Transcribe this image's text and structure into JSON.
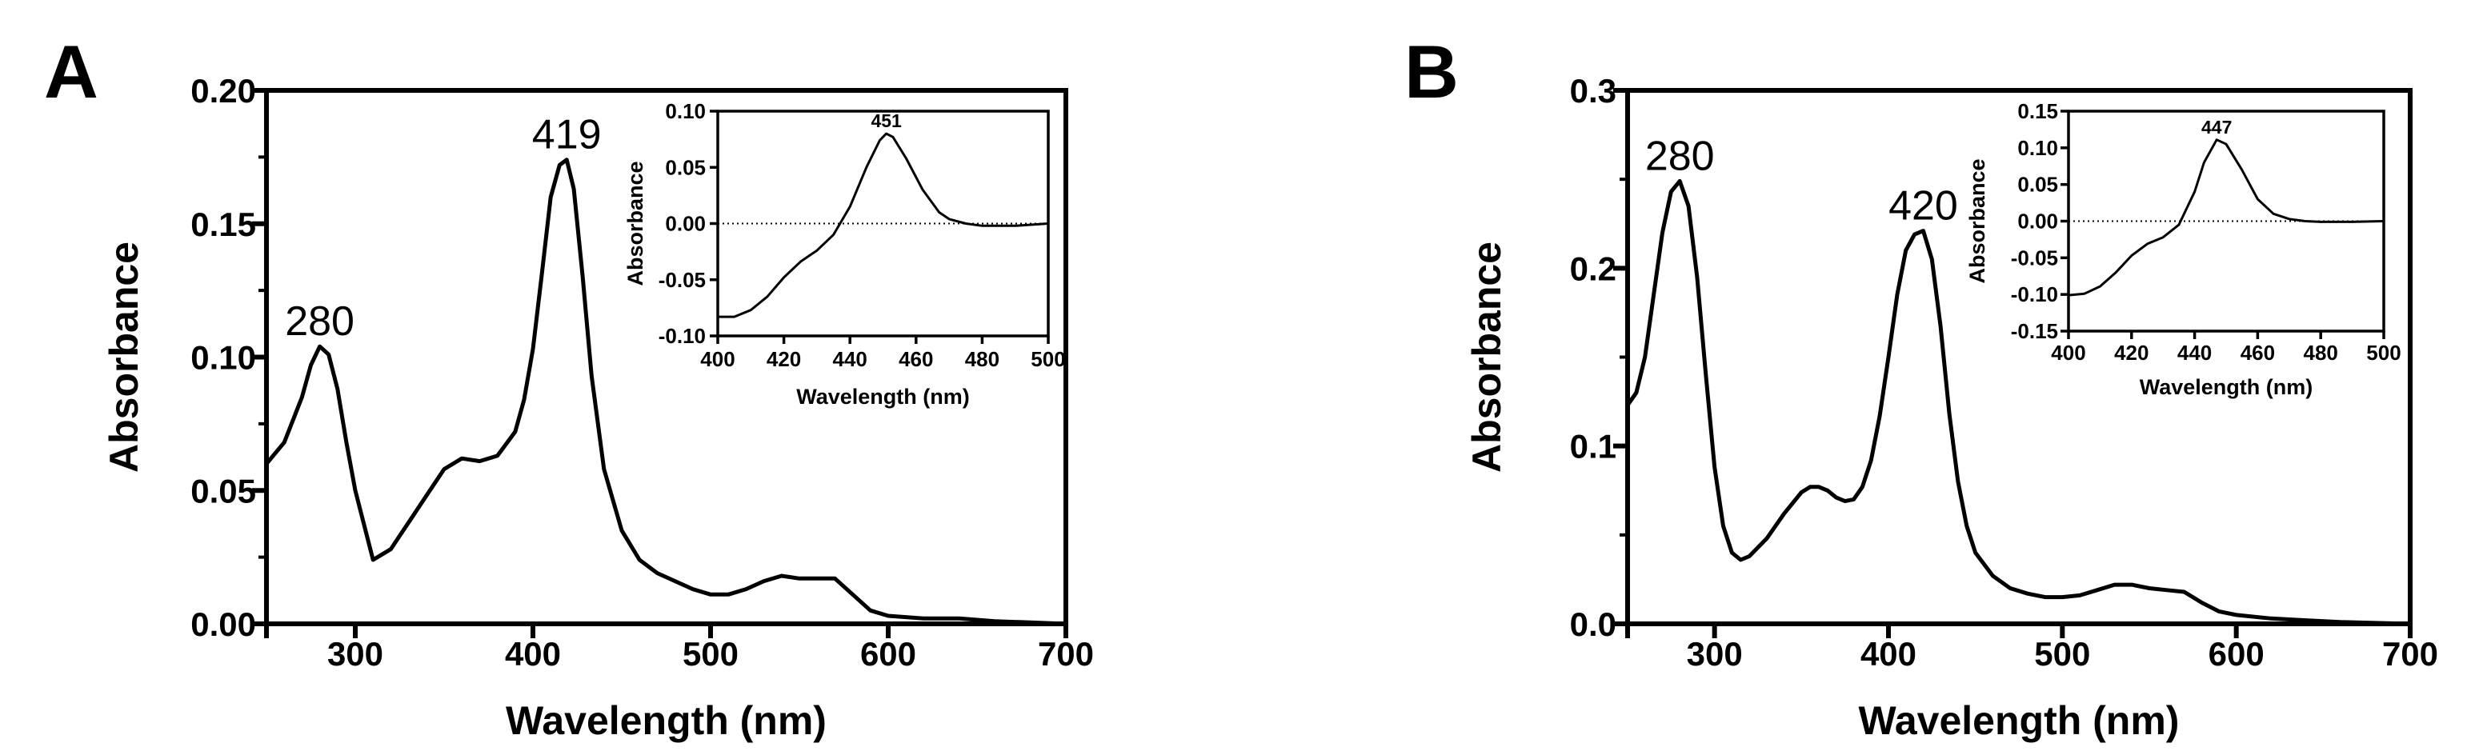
{
  "chart_data": [
    {
      "panel": "A",
      "type": "line",
      "xlabel": "Wavelength (nm)",
      "ylabel": "Absorbance",
      "xlim": [
        250,
        700
      ],
      "ylim": [
        0,
        0.2
      ],
      "xticks": [
        "300",
        "400",
        "500",
        "600",
        "700"
      ],
      "yticks": [
        "0.00",
        "0.05",
        "0.10",
        "0.15",
        "0.20"
      ],
      "annotations": [
        {
          "text": "280",
          "x": 280,
          "y": 0.104
        },
        {
          "text": "419",
          "x": 419,
          "y": 0.174
        }
      ],
      "series": [
        {
          "x": [
            250,
            260,
            270,
            275,
            280,
            285,
            290,
            295,
            300,
            305,
            310,
            315,
            320,
            325,
            330,
            340,
            350,
            355,
            360,
            370,
            380,
            390,
            395,
            400,
            405,
            410,
            415,
            419,
            423,
            428,
            433,
            440,
            450,
            460,
            470,
            480,
            490,
            500,
            510,
            520,
            530,
            540,
            550,
            560,
            570,
            580,
            590,
            600,
            620,
            640,
            660,
            680,
            700
          ],
          "y": [
            0.06,
            0.068,
            0.085,
            0.097,
            0.104,
            0.101,
            0.088,
            0.068,
            0.05,
            0.037,
            0.024,
            0.026,
            0.028,
            0.033,
            0.038,
            0.048,
            0.058,
            0.06,
            0.062,
            0.061,
            0.063,
            0.072,
            0.084,
            0.103,
            0.131,
            0.16,
            0.172,
            0.174,
            0.163,
            0.13,
            0.093,
            0.058,
            0.035,
            0.024,
            0.019,
            0.016,
            0.013,
            0.011,
            0.011,
            0.013,
            0.016,
            0.018,
            0.017,
            0.017,
            0.017,
            0.011,
            0.005,
            0.003,
            0.002,
            0.002,
            0.001,
            0.0005,
            0.0
          ]
        }
      ],
      "inset": {
        "type": "line",
        "xlabel": "Wavelength (nm)",
        "ylabel": "Absorbance",
        "xlim": [
          400,
          500
        ],
        "ylim": [
          -0.1,
          0.1
        ],
        "xticks": [
          "400",
          "420",
          "440",
          "460",
          "480",
          "500"
        ],
        "yticks": [
          "-0.10",
          "-0.05",
          "0.00",
          "0.05",
          "0.10"
        ],
        "baseline": 0,
        "annotations": [
          {
            "text": "451",
            "x": 451,
            "y": 0.08
          }
        ],
        "series": [
          {
            "x": [
              400,
              405,
              410,
              415,
              420,
              425,
              430,
              435,
              440,
              445,
              449,
              451,
              453,
              457,
              462,
              467,
              470,
              475,
              480,
              490,
              500
            ],
            "y": [
              -0.083,
              -0.083,
              -0.077,
              -0.065,
              -0.048,
              -0.034,
              -0.024,
              -0.01,
              0.015,
              0.05,
              0.074,
              0.08,
              0.077,
              0.058,
              0.03,
              0.01,
              0.004,
              0.0,
              -0.002,
              -0.002,
              0.0
            ]
          }
        ]
      }
    },
    {
      "panel": "B",
      "type": "line",
      "xlabel": "Wavelength (nm)",
      "ylabel": "Absorbance",
      "xlim": [
        250,
        700
      ],
      "ylim": [
        0,
        0.3
      ],
      "xticks": [
        "300",
        "400",
        "500",
        "600",
        "700"
      ],
      "yticks": [
        "0.0",
        "0.1",
        "0.2",
        "0.3"
      ],
      "annotations": [
        {
          "text": "280",
          "x": 280,
          "y": 0.249
        },
        {
          "text": "420",
          "x": 420,
          "y": 0.221
        }
      ],
      "series": [
        {
          "x": [
            250,
            255,
            260,
            265,
            270,
            275,
            280,
            285,
            290,
            295,
            300,
            305,
            310,
            315,
            320,
            330,
            340,
            350,
            355,
            360,
            365,
            370,
            375,
            380,
            385,
            390,
            395,
            400,
            405,
            410,
            415,
            420,
            425,
            430,
            435,
            440,
            445,
            450,
            460,
            470,
            480,
            490,
            500,
            510,
            520,
            530,
            540,
            550,
            560,
            570,
            580,
            590,
            600,
            620,
            640,
            660,
            680,
            700
          ],
          "y": [
            0.123,
            0.13,
            0.15,
            0.185,
            0.22,
            0.243,
            0.249,
            0.235,
            0.195,
            0.14,
            0.088,
            0.055,
            0.04,
            0.036,
            0.038,
            0.048,
            0.062,
            0.074,
            0.077,
            0.077,
            0.075,
            0.071,
            0.069,
            0.07,
            0.077,
            0.092,
            0.117,
            0.15,
            0.185,
            0.21,
            0.219,
            0.221,
            0.205,
            0.167,
            0.118,
            0.08,
            0.055,
            0.04,
            0.027,
            0.02,
            0.017,
            0.015,
            0.015,
            0.016,
            0.019,
            0.022,
            0.022,
            0.02,
            0.019,
            0.018,
            0.012,
            0.007,
            0.005,
            0.003,
            0.002,
            0.001,
            0.0005,
            0.0
          ]
        }
      ],
      "inset": {
        "type": "line",
        "xlabel": "Wavelength (nm)",
        "ylabel": "Absorbance",
        "xlim": [
          400,
          500
        ],
        "ylim": [
          -0.15,
          0.15
        ],
        "xticks": [
          "400",
          "420",
          "440",
          "460",
          "480",
          "500"
        ],
        "yticks": [
          "-0.15",
          "-0.10",
          "-0.05",
          "0.00",
          "0.05",
          "0.10",
          "0.15"
        ],
        "baseline": 0,
        "annotations": [
          {
            "text": "447",
            "x": 447,
            "y": 0.111
          }
        ],
        "series": [
          {
            "x": [
              400,
              405,
              410,
              415,
              420,
              425,
              430,
              435,
              440,
              443,
              447,
              450,
              455,
              460,
              465,
              470,
              475,
              480,
              490,
              500
            ],
            "y": [
              -0.101,
              -0.099,
              -0.089,
              -0.07,
              -0.047,
              -0.031,
              -0.022,
              -0.005,
              0.04,
              0.08,
              0.111,
              0.105,
              0.07,
              0.03,
              0.01,
              0.003,
              0.0,
              -0.001,
              -0.001,
              0.0
            ]
          }
        ]
      }
    }
  ]
}
